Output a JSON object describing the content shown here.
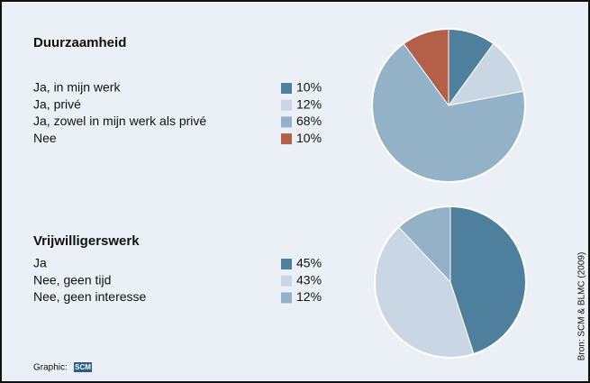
{
  "chart_data": [
    {
      "type": "pie",
      "title": "Duurzaamheid",
      "categories": [
        "Ja, in mijn werk",
        "Ja, privé",
        "Ja, zowel in mijn werk als privé",
        "Nee"
      ],
      "values": [
        10,
        12,
        68,
        10
      ],
      "value_labels": [
        "10%",
        "12%",
        "68%",
        "10%"
      ],
      "colors": [
        "#4e7f9c",
        "#c8d7e3",
        "#93b1c7",
        "#b45f48"
      ]
    },
    {
      "type": "pie",
      "title": "Vrijwilligerswerk",
      "categories": [
        "Ja",
        "Nee, geen tijd",
        "Nee, geen interesse"
      ],
      "values": [
        45,
        43,
        12
      ],
      "value_labels": [
        "45%",
        "43%",
        "12%"
      ],
      "colors": [
        "#4e7f9c",
        "#c8d7e3",
        "#93b1c7"
      ]
    }
  ],
  "credit": "Graphic:",
  "logo": "SCM",
  "source": "Bron: SCM & BLMC (2009)"
}
